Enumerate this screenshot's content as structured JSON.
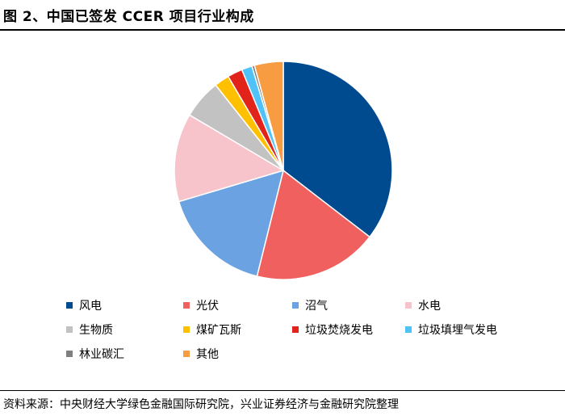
{
  "figure": {
    "title": "图 2、中国已签发 CCER 项目行业构成",
    "source": "资料来源：中央财经大学绿色金融国际研究院，兴业证券经济与金融研究院整理"
  },
  "chart_data": {
    "type": "pie",
    "start": "12 o'clock, clockwise",
    "legend_position": "bottom",
    "categories": [
      "风电",
      "光伏",
      "沼气",
      "水电",
      "生物质",
      "煤矿瓦斯",
      "垃圾焚烧发电",
      "垃圾填埋气发电",
      "林业碳汇",
      "其他"
    ],
    "values": [
      36.5,
      19.0,
      17.0,
      13.5,
      6.0,
      2.3,
      2.3,
      1.6,
      0.4,
      4.4
    ],
    "colors": [
      "#004a8f",
      "#f0605f",
      "#6aa2e2",
      "#f8c4cb",
      "#c2c2c2",
      "#ffc000",
      "#e2231a",
      "#4fc3f7",
      "#7f7f7f",
      "#f79c40"
    ]
  }
}
